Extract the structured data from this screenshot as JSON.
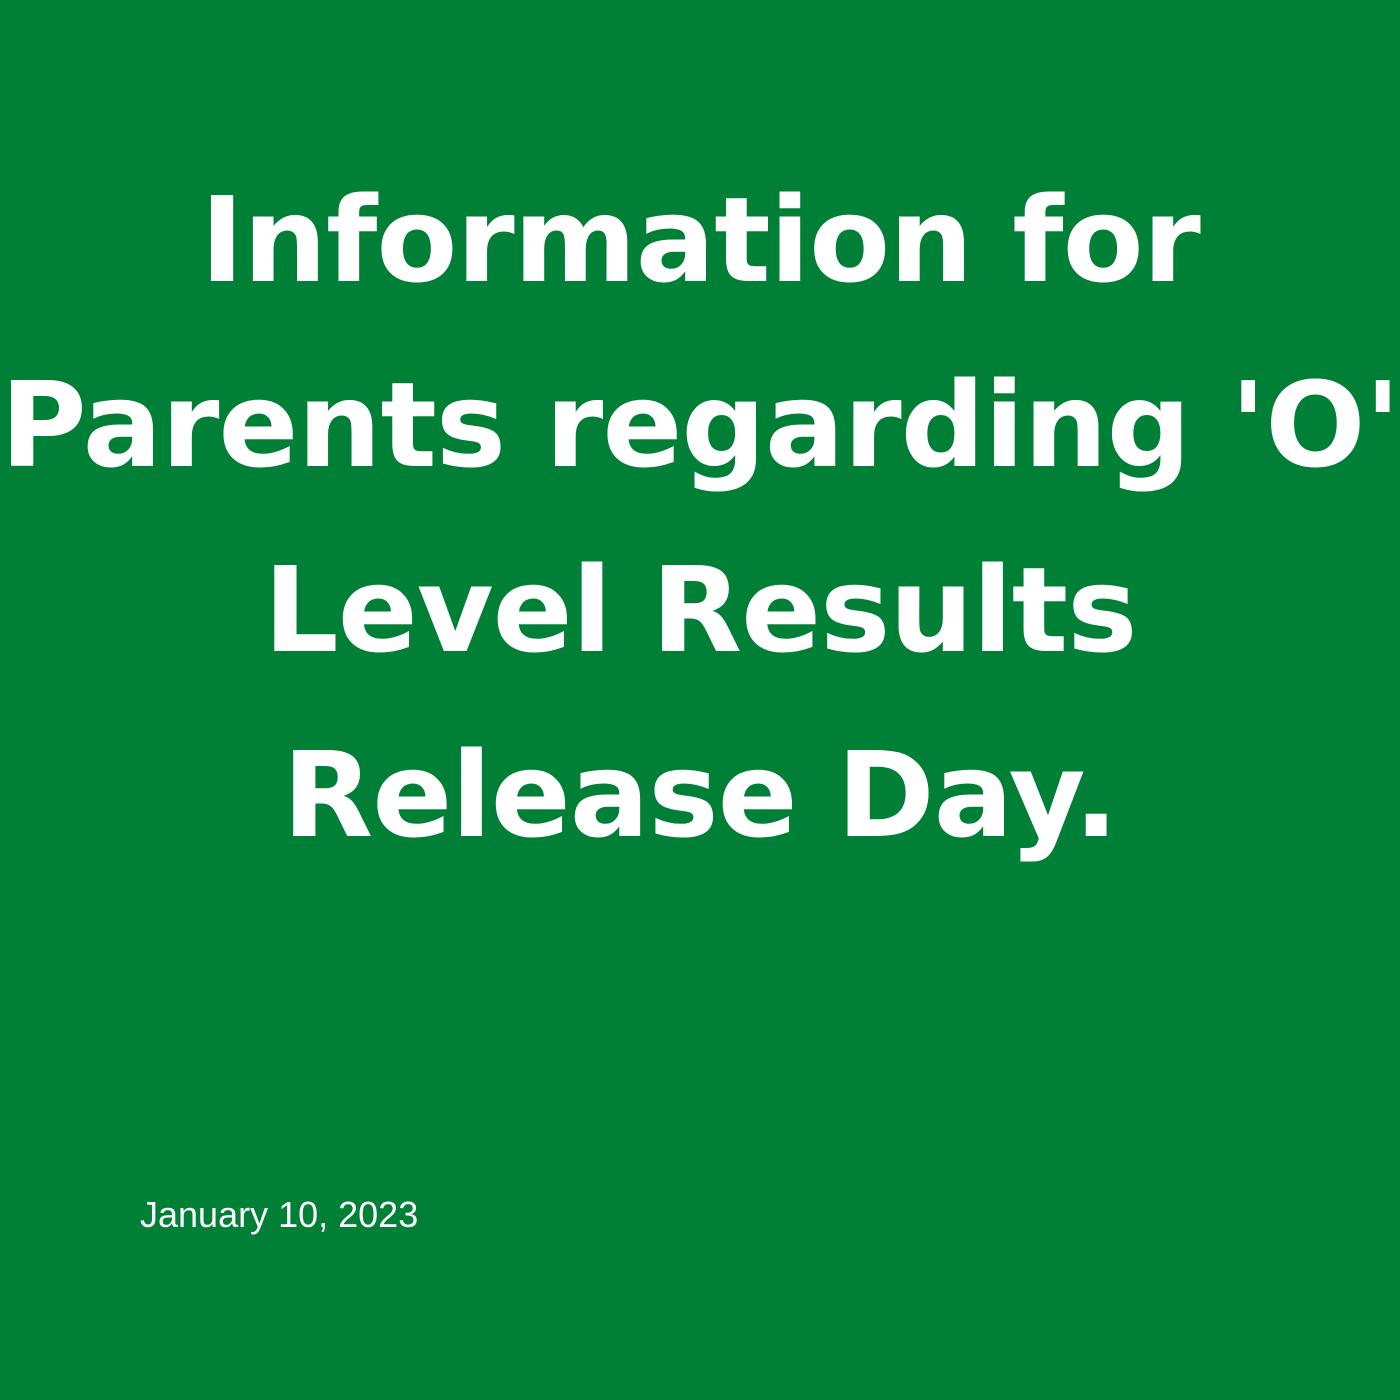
{
  "colors": {
    "background": "#007f37",
    "text": "#ffffff"
  },
  "title_lines": [
    "Information for",
    "Parents regarding 'O'",
    "Level Results",
    "Release Day."
  ],
  "date": "January 10, 2023"
}
